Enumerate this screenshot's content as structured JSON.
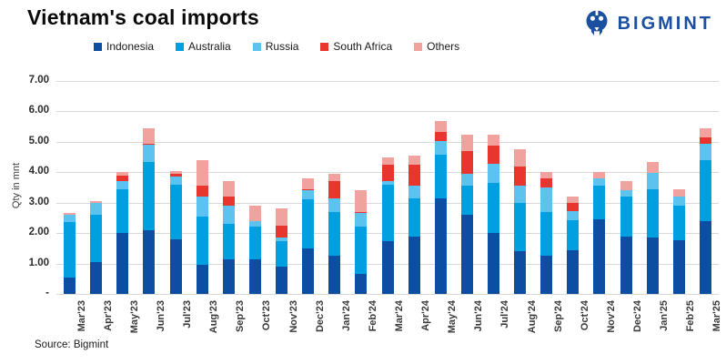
{
  "header": {
    "title": "Vietnam's coal imports",
    "brand": "BIGMINT"
  },
  "footer": {
    "source": "Source: Bigmint"
  },
  "colors": {
    "brand_blue": "#1b4fa0",
    "gridline": "#d9d9d9",
    "indonesia": "#0d4ea3",
    "australia": "#00a0e0",
    "russia": "#5cc3ef",
    "south_africa": "#e8362e",
    "others": "#f0a29e"
  },
  "chart_data": {
    "type": "bar",
    "stacked": true,
    "title": "Vietnam's coal imports",
    "xlabel": "",
    "ylabel": "Qty in mnt",
    "ylim": [
      0,
      7
    ],
    "grid": true,
    "legend_position": "top",
    "ytick_labels": [
      "-",
      "1.00",
      "2.00",
      "3.00",
      "4.00",
      "5.00",
      "6.00",
      "7.00"
    ],
    "categories": [
      "Mar'23",
      "Apr'23",
      "May'23",
      "Jun'23",
      "Jul'23",
      "Aug'23",
      "Sep'23",
      "Oct'23",
      "Nov'23",
      "Dec'23",
      "Jan'24",
      "Feb'24",
      "Mar'24",
      "Apr'24",
      "May'24",
      "Jun'24",
      "Jul'24",
      "Aug'24",
      "Sep'24",
      "Oct'24",
      "Nov'24",
      "Dec'24",
      "Jan'25",
      "Feb'25",
      "Mar'25"
    ],
    "series": [
      {
        "name": "Indonesia",
        "color": "#0d4ea3",
        "values": [
          0.55,
          1.05,
          2.0,
          2.1,
          1.8,
          0.95,
          1.15,
          1.15,
          0.9,
          1.5,
          1.25,
          0.65,
          1.75,
          1.9,
          3.15,
          2.6,
          2.0,
          1.42,
          1.25,
          1.45,
          2.45,
          1.9,
          1.85,
          1.77,
          2.4
        ]
      },
      {
        "name": "Australia",
        "color": "#00a0e0",
        "values": [
          1.8,
          1.55,
          1.45,
          2.25,
          1.8,
          1.6,
          1.15,
          1.05,
          0.85,
          1.6,
          1.45,
          1.55,
          1.85,
          1.25,
          1.42,
          0.95,
          1.65,
          1.58,
          1.45,
          0.98,
          1.1,
          1.3,
          1.58,
          1.13,
          2.0
        ]
      },
      {
        "name": "Russia",
        "color": "#5cc3ef",
        "values": [
          0.25,
          0.4,
          0.25,
          0.55,
          0.25,
          0.65,
          0.6,
          0.2,
          0.1,
          0.3,
          0.45,
          0.45,
          0.1,
          0.4,
          0.45,
          0.4,
          0.62,
          0.57,
          0.8,
          0.3,
          0.25,
          0.2,
          0.55,
          0.3,
          0.55
        ]
      },
      {
        "name": "South Africa",
        "color": "#e8362e",
        "values": [
          0.0,
          0.0,
          0.2,
          0.05,
          0.1,
          0.35,
          0.3,
          0.0,
          0.4,
          0.05,
          0.55,
          0.05,
          0.55,
          0.7,
          0.3,
          0.75,
          0.6,
          0.63,
          0.3,
          0.27,
          0.0,
          0.0,
          0.0,
          0.0,
          0.2
        ]
      },
      {
        "name": "Others",
        "color": "#f0a29e",
        "values": [
          0.05,
          0.05,
          0.1,
          0.5,
          0.1,
          0.85,
          0.5,
          0.5,
          0.55,
          0.35,
          0.25,
          0.7,
          0.25,
          0.3,
          0.38,
          0.55,
          0.38,
          0.55,
          0.2,
          0.2,
          0.2,
          0.3,
          0.37,
          0.25,
          0.3
        ]
      }
    ]
  }
}
